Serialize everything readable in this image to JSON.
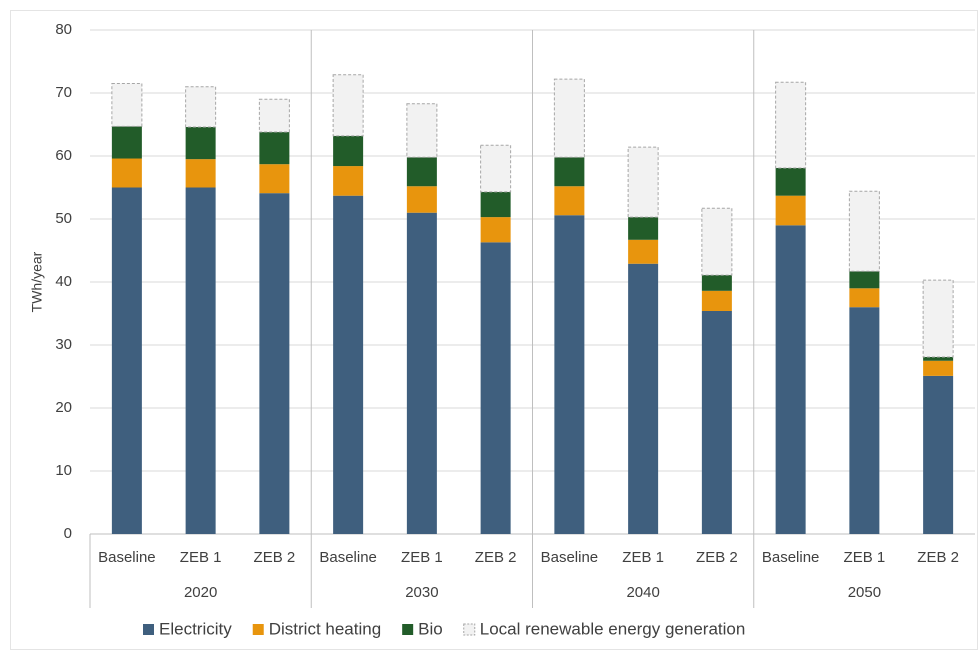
{
  "chart_data": {
    "type": "stacked_bar",
    "y_label": "TWh/year",
    "groups": [
      {
        "label": "2020",
        "categories": [
          "Baseline",
          "ZEB 1",
          "ZEB 2"
        ]
      },
      {
        "label": "2030",
        "categories": [
          "Baseline",
          "ZEB 1",
          "ZEB 2"
        ]
      },
      {
        "label": "2040",
        "categories": [
          "Baseline",
          "ZEB 1",
          "ZEB 2"
        ]
      },
      {
        "label": "2050",
        "categories": [
          "Baseline",
          "ZEB 1",
          "ZEB 2"
        ]
      }
    ],
    "series": [
      {
        "name": "Electricity",
        "color": "#3f5f7e",
        "values": [
          55,
          55,
          54.1,
          53.7,
          51,
          46.3,
          50.6,
          42.9,
          35.4,
          49,
          36,
          25.1
        ]
      },
      {
        "name": "District heating",
        "color": "#e8950d",
        "values": [
          4.6,
          4.5,
          4.6,
          4.7,
          4.2,
          4,
          4.6,
          3.8,
          3.2,
          4.7,
          3,
          2.4
        ]
      },
      {
        "name": "Bio",
        "color": "#225c29",
        "values": [
          5.1,
          5.1,
          5.1,
          4.8,
          4.6,
          4,
          4.6,
          3.6,
          2.5,
          4.4,
          2.7,
          0.6
        ]
      },
      {
        "name": "Local renewable energy generation",
        "color": "#f2f2f2",
        "dashed": true,
        "values": [
          6.8,
          6.4,
          5.2,
          9.7,
          8.5,
          7.4,
          12.4,
          11.1,
          10.6,
          13.6,
          12.7,
          12.2
        ]
      }
    ],
    "ylim": [
      0,
      80
    ],
    "yticks": [
      0,
      10,
      20,
      30,
      40,
      50,
      60,
      70,
      80
    ],
    "grid": true
  }
}
